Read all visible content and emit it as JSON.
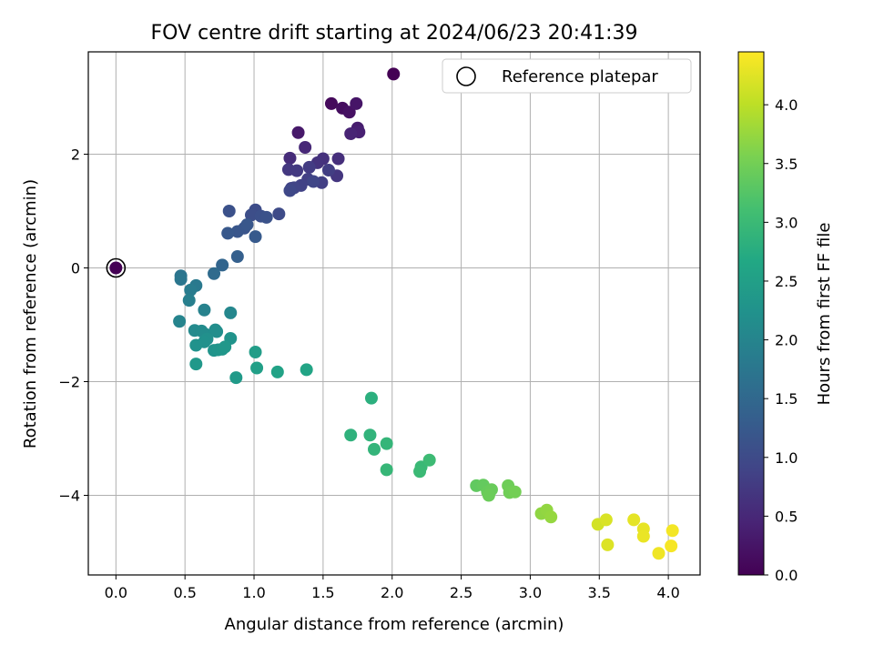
{
  "chart_data": {
    "type": "scatter",
    "title": "FOV centre drift starting at 2024/06/23 20:41:39",
    "xlabel": "Angular distance from reference (arcmin)",
    "ylabel": "Rotation from reference (arcmin)",
    "xlim": [
      -0.2,
      4.23
    ],
    "ylim": [
      -5.4,
      3.8
    ],
    "xticks": [
      "0.0",
      "0.5",
      "1.0",
      "1.5",
      "2.0",
      "2.5",
      "3.0",
      "3.5",
      "4.0"
    ],
    "xtick_values": [
      0,
      0.5,
      1,
      1.5,
      2,
      2.5,
      3,
      3.5,
      4
    ],
    "yticks": [
      "−4",
      "−2",
      "0",
      "2"
    ],
    "ytick_values": [
      -4,
      -2,
      0,
      2
    ],
    "grid": true,
    "legend": {
      "position": "top-right",
      "entries": [
        "Reference platepar"
      ]
    },
    "reference_point": {
      "x": 0.0,
      "y": 0.0,
      "hours": 0.0
    },
    "colorbar": {
      "label": "Hours from first FF file",
      "range": [
        0.0,
        4.45
      ],
      "ticks": [
        "0.0",
        "0.5",
        "1.0",
        "1.5",
        "2.0",
        "2.5",
        "3.0",
        "3.5",
        "4.0"
      ],
      "tick_values": [
        0,
        0.5,
        1,
        1.5,
        2,
        2.5,
        3,
        3.5,
        4
      ],
      "colormap": "viridis"
    },
    "series": [
      {
        "points": [
          [
            2.01,
            3.41,
            0.0
          ],
          [
            1.56,
            2.89,
            0.1
          ],
          [
            1.64,
            2.81,
            0.15
          ],
          [
            1.69,
            2.74,
            0.2
          ],
          [
            1.74,
            2.89,
            0.25
          ],
          [
            1.32,
            2.38,
            0.3
          ],
          [
            1.75,
            2.46,
            0.35
          ],
          [
            1.76,
            2.39,
            0.4
          ],
          [
            1.7,
            2.36,
            0.45
          ],
          [
            1.37,
            2.12,
            0.5
          ],
          [
            1.26,
            1.93,
            0.55
          ],
          [
            1.61,
            1.92,
            0.6
          ],
          [
            1.5,
            1.92,
            0.62
          ],
          [
            1.46,
            1.85,
            0.65
          ],
          [
            1.6,
            1.62,
            0.7
          ],
          [
            1.25,
            1.73,
            0.72
          ],
          [
            1.31,
            1.71,
            0.75
          ],
          [
            1.4,
            1.77,
            0.78
          ],
          [
            1.54,
            1.72,
            0.8
          ],
          [
            1.49,
            1.5,
            0.82
          ],
          [
            1.39,
            1.56,
            0.84
          ],
          [
            1.34,
            1.45,
            0.86
          ],
          [
            1.27,
            1.4,
            0.88
          ],
          [
            1.29,
            1.41,
            0.9
          ],
          [
            1.43,
            1.52,
            0.92
          ],
          [
            1.26,
            1.36,
            0.95
          ],
          [
            1.18,
            0.95,
            1.0
          ],
          [
            1.01,
            1.02,
            1.02
          ],
          [
            0.98,
            0.93,
            1.05
          ],
          [
            1.05,
            0.91,
            1.08
          ],
          [
            0.82,
            1.0,
            1.1
          ],
          [
            1.09,
            0.89,
            1.12
          ],
          [
            0.93,
            0.7,
            1.15
          ],
          [
            0.88,
            0.64,
            1.18
          ],
          [
            0.95,
            0.76,
            1.2
          ],
          [
            0.81,
            0.61,
            1.22
          ],
          [
            1.01,
            0.55,
            1.25
          ],
          [
            0.88,
            0.2,
            1.35
          ],
          [
            0.77,
            0.05,
            1.45
          ],
          [
            0.71,
            -0.1,
            1.55
          ],
          [
            0.47,
            -0.14,
            1.7
          ],
          [
            0.47,
            -0.2,
            1.75
          ],
          [
            0.58,
            -0.31,
            1.8
          ],
          [
            0.54,
            -0.39,
            1.85
          ],
          [
            0.53,
            -0.57,
            1.9
          ],
          [
            0.64,
            -0.74,
            1.95
          ],
          [
            0.46,
            -0.94,
            2.0
          ],
          [
            0.83,
            -0.79,
            2.05
          ],
          [
            0.57,
            -1.1,
            2.1
          ],
          [
            0.62,
            -1.11,
            2.12
          ],
          [
            0.65,
            -1.17,
            2.14
          ],
          [
            0.72,
            -1.09,
            2.16
          ],
          [
            0.73,
            -1.12,
            2.18
          ],
          [
            0.66,
            -1.25,
            2.2
          ],
          [
            0.64,
            -1.3,
            2.22
          ],
          [
            0.58,
            -1.36,
            2.24
          ],
          [
            0.83,
            -1.24,
            2.26
          ],
          [
            0.71,
            -1.45,
            2.28
          ],
          [
            0.74,
            -1.44,
            2.3
          ],
          [
            0.77,
            -1.43,
            2.32
          ],
          [
            0.79,
            -1.39,
            2.34
          ],
          [
            0.58,
            -1.69,
            2.36
          ],
          [
            0.87,
            -1.93,
            2.4
          ],
          [
            1.01,
            -1.48,
            2.45
          ],
          [
            1.02,
            -1.76,
            2.5
          ],
          [
            1.17,
            -1.83,
            2.55
          ],
          [
            1.38,
            -1.79,
            2.6
          ],
          [
            1.85,
            -2.29,
            2.8
          ],
          [
            1.7,
            -2.94,
            2.85
          ],
          [
            1.84,
            -2.94,
            2.88
          ],
          [
            1.87,
            -3.19,
            2.9
          ],
          [
            1.96,
            -3.09,
            2.92
          ],
          [
            1.96,
            -3.55,
            2.95
          ],
          [
            2.21,
            -3.5,
            2.98
          ],
          [
            2.2,
            -3.58,
            3.0
          ],
          [
            2.27,
            -3.38,
            3.02
          ],
          [
            2.61,
            -3.83,
            3.35
          ],
          [
            2.66,
            -3.82,
            3.38
          ],
          [
            2.69,
            -3.94,
            3.4
          ],
          [
            2.72,
            -3.9,
            3.42
          ],
          [
            2.7,
            -4.0,
            3.44
          ],
          [
            2.84,
            -3.83,
            3.46
          ],
          [
            2.85,
            -3.95,
            3.48
          ],
          [
            2.89,
            -3.94,
            3.5
          ],
          [
            3.08,
            -4.32,
            3.7
          ],
          [
            3.12,
            -4.26,
            3.72
          ],
          [
            3.15,
            -4.38,
            3.74
          ],
          [
            3.49,
            -4.51,
            4.15
          ],
          [
            3.55,
            -4.43,
            4.2
          ],
          [
            3.56,
            -4.87,
            4.22
          ],
          [
            3.75,
            -4.43,
            4.28
          ],
          [
            3.82,
            -4.59,
            4.3
          ],
          [
            3.82,
            -4.72,
            4.32
          ],
          [
            3.93,
            -5.02,
            4.35
          ],
          [
            4.03,
            -4.62,
            4.38
          ],
          [
            4.02,
            -4.89,
            4.4
          ]
        ]
      }
    ]
  }
}
